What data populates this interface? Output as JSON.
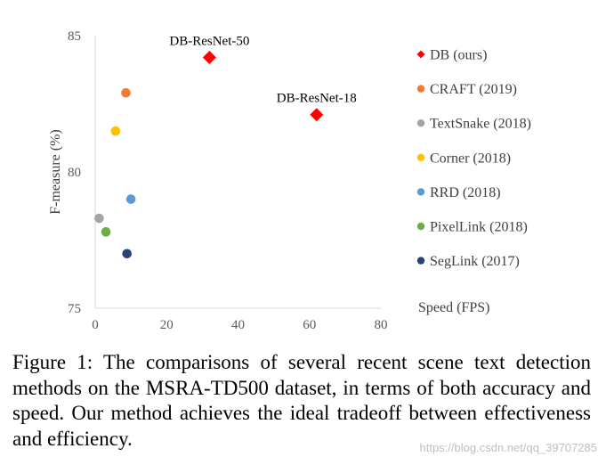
{
  "chart_data": {
    "type": "scatter",
    "xlabel": "Speed (FPS)",
    "ylabel": "F-measure (%)",
    "xlim": [
      0,
      80
    ],
    "ylim": [
      75,
      85
    ],
    "xticks": [
      "0",
      "20",
      "40",
      "60",
      "80"
    ],
    "yticks": [
      "75",
      "80",
      "85"
    ],
    "grid": false,
    "legend_position": "right",
    "series": [
      {
        "name": "DB (ours)",
        "color": "#ff0000",
        "marker": "diamond",
        "points": [
          {
            "x": 32,
            "y": 84.2,
            "label": "DB-ResNet-50"
          },
          {
            "x": 62,
            "y": 82.1,
            "label": "DB-ResNet-18"
          }
        ]
      },
      {
        "name": "CRAFT (2019)",
        "color": "#ed7d31",
        "marker": "circle",
        "points": [
          {
            "x": 8.6,
            "y": 82.9
          }
        ]
      },
      {
        "name": "TextSnake (2018)",
        "color": "#a5a5a5",
        "marker": "circle",
        "points": [
          {
            "x": 1.1,
            "y": 78.3
          }
        ]
      },
      {
        "name": "Corner (2018)",
        "color": "#ffc000",
        "marker": "circle",
        "points": [
          {
            "x": 5.7,
            "y": 81.5
          }
        ]
      },
      {
        "name": "RRD (2018)",
        "color": "#5b9bd5",
        "marker": "circle",
        "points": [
          {
            "x": 10,
            "y": 79
          }
        ]
      },
      {
        "name": "PixelLink (2018)",
        "color": "#70ad47",
        "marker": "circle",
        "points": [
          {
            "x": 3,
            "y": 77.8
          }
        ]
      },
      {
        "name": "SegLink (2017)",
        "color": "#264478",
        "marker": "circle",
        "points": [
          {
            "x": 8.9,
            "y": 77
          }
        ]
      }
    ]
  },
  "caption": "Figure 1: The comparisons of several recent scene text detection methods on the MSRA-TD500 dataset, in terms of both accuracy and speed. Our method achieves the ideal tradeoff between effectiveness and efficiency.",
  "watermark": "https://blog.csdn.net/qq_39707285"
}
